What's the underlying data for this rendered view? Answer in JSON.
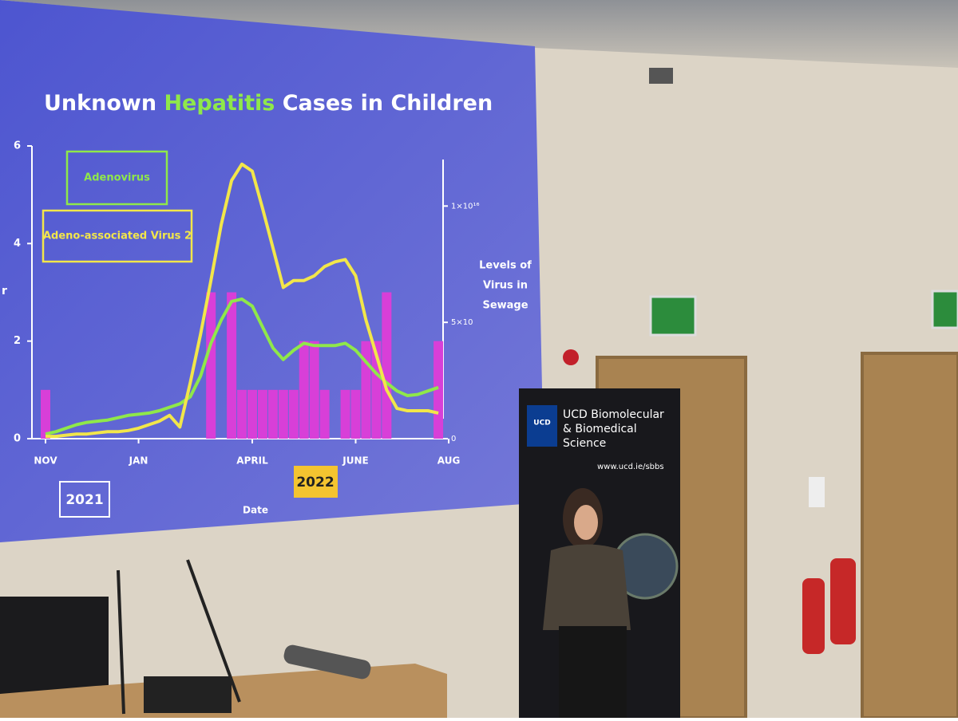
{
  "chart_data": {
    "type": "bar",
    "title": [
      "Unknown",
      "Hepatitis",
      "Cases in Children"
    ],
    "y_label": "r",
    "x_label": "Date",
    "y2_label": [
      "Levels of",
      "Virus in",
      "Sewage"
    ],
    "years": [
      "2021",
      "2022"
    ],
    "categories": [
      "NOV",
      null,
      null,
      null,
      null,
      null,
      null,
      null,
      null,
      "JAN",
      null,
      null,
      null,
      null,
      null,
      null,
      null,
      null,
      null,
      null,
      "APRIL",
      null,
      null,
      null,
      null,
      null,
      null,
      null,
      null,
      null,
      "JUNE",
      null,
      null,
      null,
      null,
      null,
      null,
      null,
      null,
      "AUG"
    ],
    "values": [
      1,
      0,
      0,
      0,
      0,
      0,
      0,
      0,
      0,
      0,
      0,
      0,
      0,
      0,
      0,
      0,
      3,
      0,
      3,
      1,
      1,
      1,
      1,
      1,
      1,
      2,
      2,
      1,
      0,
      1,
      1,
      2,
      2,
      3,
      0,
      0,
      0,
      0,
      2,
      0
    ],
    "color": "#d83fd8",
    "ylim": [
      0,
      6
    ],
    "yticks": [
      0,
      2,
      4,
      6
    ],
    "y2lim": [
      0,
      1.2e+16
    ],
    "y2ticks": [
      0,
      {
        "value": 5000000000000000.0,
        "label": "5×10"
      },
      {
        "value": 1e+16,
        "label": "1×10¹⁶"
      }
    ],
    "series": [
      {
        "name": "Adenovirus",
        "color": "#8fe84a",
        "axis": "y2",
        "values": [
          200000000000000.0,
          300000000000000.0,
          450000000000000.0,
          600000000000000.0,
          700000000000000.0,
          750000000000000.0,
          800000000000000.0,
          900000000000000.0,
          1000000000000000.0,
          1050000000000000.0,
          1100000000000000.0,
          1200000000000000.0,
          1350000000000000.0,
          1500000000000000.0,
          1800000000000000.0,
          2700000000000000.0,
          4100000000000000.0,
          5100000000000000.0,
          5900000000000000.0,
          6000000000000000.0,
          5700000000000000.0,
          4800000000000000.0,
          3900000000000000.0,
          3400000000000000.0,
          3800000000000000.0,
          4100000000000000.0,
          4000000000000000.0,
          4000000000000000.0,
          4000000000000000.0,
          4100000000000000.0,
          3800000000000000.0,
          3300000000000000.0,
          2800000000000000.0,
          2400000000000000.0,
          2050000000000000.0,
          1850000000000000.0,
          1900000000000000.0,
          2050000000000000.0,
          2200000000000000.0,
          null
        ]
      },
      {
        "name": "Adeno-associated Virus 2",
        "color": "#f2e64a",
        "axis": "y2",
        "values": [
          100000000000000.0,
          100000000000000.0,
          150000000000000.0,
          200000000000000.0,
          200000000000000.0,
          250000000000000.0,
          300000000000000.0,
          300000000000000.0,
          350000000000000.0,
          450000000000000.0,
          600000000000000.0,
          750000000000000.0,
          1000000000000000.0,
          500000000000000.0,
          2400000000000000.0,
          4500000000000000.0,
          6800000000000000.0,
          9200000000000000.0,
          1.11e+16,
          1.18e+16,
          1.15e+16,
          9900000000000000.0,
          8200000000000000.0,
          6500000000000000.0,
          6800000000000000.0,
          6800000000000000.0,
          7000000000000000.0,
          7400000000000000.0,
          7600000000000000.0,
          7700000000000000.0,
          7000000000000000.0,
          5100000000000000.0,
          3600000000000000.0,
          2100000000000000.0,
          1300000000000000.0,
          1200000000000000.0,
          1200000000000000.0,
          1200000000000000.0,
          1100000000000000.0,
          null
        ]
      }
    ]
  },
  "banner": {
    "lines": [
      "UCD Biomolecular",
      "& Biomedical",
      "Science"
    ],
    "url": "www.ucd.ie/sbbs",
    "logo": "UCD"
  }
}
